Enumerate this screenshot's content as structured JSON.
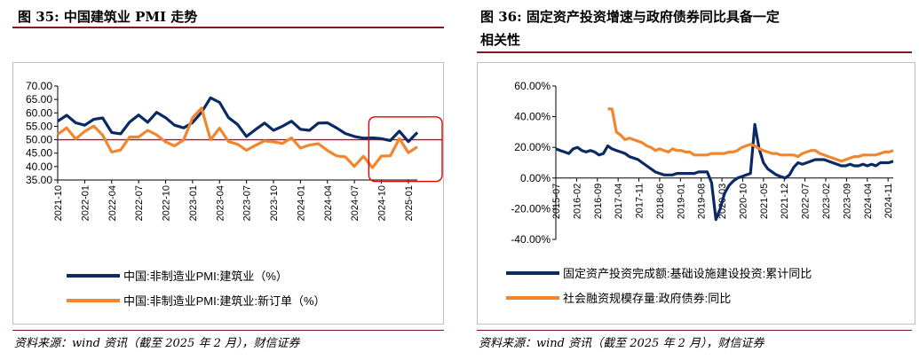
{
  "charts": [
    {
      "title": "图 35: 中国建筑业 PMI 走势",
      "source": "资料来源：wind 资讯（截至 2025 年 2 月），财信证券",
      "chart_data": {
        "type": "line",
        "x": [
          "2021-10",
          "2021-11",
          "2021-12",
          "2022-01",
          "2022-02",
          "2022-03",
          "2022-04",
          "2022-05",
          "2022-06",
          "2022-07",
          "2022-08",
          "2022-09",
          "2022-10",
          "2022-11",
          "2022-12",
          "2023-01",
          "2023-02",
          "2023-03",
          "2023-04",
          "2023-05",
          "2023-06",
          "2023-07",
          "2023-08",
          "2023-09",
          "2023-10",
          "2023-11",
          "2023-12",
          "2024-01",
          "2024-02",
          "2024-03",
          "2024-04",
          "2024-05",
          "2024-06",
          "2024-07",
          "2024-08",
          "2024-09",
          "2024-10",
          "2024-11",
          "2024-12",
          "2025-01",
          "2025-02"
        ],
        "x_tick_labels": [
          "2021-10",
          "2022-01",
          "2022-04",
          "2022-07",
          "2022-10",
          "2023-01",
          "2023-04",
          "2023-07",
          "2023-10",
          "2024-01",
          "2024-04",
          "2024-07",
          "2024-10",
          "2025-01"
        ],
        "ylim": [
          35,
          70
        ],
        "y_ticks": [
          "35.00",
          "40.00",
          "45.00",
          "50.00",
          "55.00",
          "60.00",
          "65.00",
          "70.00"
        ],
        "reference_line": 50,
        "series": [
          {
            "name": "中国:非制造业PMI:建筑业（%）",
            "color": "#0b2a63",
            "values": [
              56.9,
              59.1,
              56.3,
              55.4,
              57.6,
              58.1,
              52.7,
              52.2,
              56.6,
              59.2,
              56.5,
              60.2,
              58.2,
              55.4,
              54.4,
              56.4,
              60.2,
              65.6,
              63.9,
              58.2,
              55.7,
              51.2,
              53.8,
              56.2,
              53.5,
              55.0,
              56.9,
              53.9,
              53.5,
              56.2,
              56.3,
              54.4,
              52.3,
              51.2,
              50.6,
              50.7,
              50.4,
              49.7,
              53.2,
              49.3,
              52.7
            ]
          },
          {
            "name": "中国:非制造业PMI:建筑业:新订单（%）",
            "color": "#f0862e",
            "values": [
              52.0,
              54.4,
              50.3,
              53.1,
              55.1,
              51.7,
              45.4,
              46.2,
              51.0,
              51.0,
              53.5,
              51.8,
              49.2,
              47.7,
              49.9,
              58.2,
              61.8,
              50.0,
              54.3,
              49.3,
              48.3,
              46.1,
              47.9,
              49.6,
              49.2,
              48.6,
              50.7,
              46.9,
              48.0,
              48.5,
              46.0,
              44.0,
              43.6,
              40.1,
              43.8,
              39.6,
              43.9,
              44.0,
              50.4,
              45.2,
              47.3
            ]
          }
        ]
      }
    },
    {
      "title_line1": "图 36: 固定资产投资增速与政府债券同比具备一定",
      "title_line2": "相关性",
      "source": "资料来源：wind 资讯（截至 2025 年 2 月），财信证券",
      "chart_data": {
        "type": "line",
        "x_tick_labels": [
          "2015-07",
          "2016-02",
          "2016-09",
          "2017-04",
          "2017-11",
          "2018-06",
          "2019-01",
          "2019-08",
          "2020-03",
          "2020-10",
          "2021-05",
          "2021-12",
          "2022-07",
          "2023-02",
          "2023-09",
          "2024-04",
          "2024-11"
        ],
        "ylim": [
          -40,
          60
        ],
        "y_ticks": [
          "-40.00%",
          "-20.00%",
          "0.00%",
          "20.00%",
          "40.00%",
          "60.00%"
        ],
        "series": [
          {
            "name": "固定资产投资完成额:基础设施建设投资:累计同比",
            "color": "#0b2a63",
            "points": [
              [
                0,
                19
              ],
              [
                1,
                18
              ],
              [
                2,
                17
              ],
              [
                3,
                16
              ],
              [
                4,
                19
              ],
              [
                5,
                20
              ],
              [
                6,
                18
              ],
              [
                7,
                17
              ],
              [
                8,
                18
              ],
              [
                9,
                17
              ],
              [
                10,
                15
              ],
              [
                11,
                16
              ],
              [
                12,
                21
              ],
              [
                13,
                19
              ],
              [
                14,
                18
              ],
              [
                15,
                17
              ],
              [
                16,
                16
              ],
              [
                17,
                14
              ],
              [
                18,
                13
              ],
              [
                19,
                12
              ],
              [
                20,
                10
              ],
              [
                21,
                8
              ],
              [
                22,
                6
              ],
              [
                23,
                4
              ],
              [
                24,
                3
              ],
              [
                25,
                2
              ],
              [
                26,
                2
              ],
              [
                27,
                2
              ],
              [
                28,
                3
              ],
              [
                29,
                3
              ],
              [
                30,
                3
              ],
              [
                31,
                3
              ],
              [
                32,
                3
              ],
              [
                33,
                4
              ],
              [
                34,
                4
              ],
              [
                35,
                4
              ],
              [
                36,
                -3
              ],
              [
                37,
                -27
              ],
              [
                38,
                -20
              ],
              [
                39,
                -10
              ],
              [
                40,
                -5
              ],
              [
                41,
                -2
              ],
              [
                42,
                0
              ],
              [
                43,
                1
              ],
              [
                44,
                2
              ],
              [
                45,
                3
              ],
              [
                46,
                35
              ],
              [
                47,
                19
              ],
              [
                48,
                10
              ],
              [
                49,
                6
              ],
              [
                50,
                4
              ],
              [
                51,
                2
              ],
              [
                52,
                1
              ],
              [
                53,
                0
              ],
              [
                54,
                2
              ],
              [
                55,
                7
              ],
              [
                56,
                10
              ],
              [
                57,
                9
              ],
              [
                58,
                10
              ],
              [
                59,
                11
              ],
              [
                60,
                12
              ],
              [
                61,
                12
              ],
              [
                62,
                12
              ],
              [
                63,
                11
              ],
              [
                64,
                10
              ],
              [
                65,
                9
              ],
              [
                66,
                8
              ],
              [
                67,
                8
              ],
              [
                68,
                9
              ],
              [
                69,
                8
              ],
              [
                70,
                8
              ],
              [
                71,
                9
              ],
              [
                72,
                8
              ],
              [
                73,
                9
              ],
              [
                74,
                8
              ],
              [
                75,
                10
              ],
              [
                76,
                10
              ],
              [
                77,
                10
              ],
              [
                78,
                11
              ]
            ]
          },
          {
            "name": "社会融资规模存量:政府债券:同比",
            "color": "#f0862e",
            "points": [
              [
                12,
                45
              ],
              [
                13,
                45
              ],
              [
                14,
                30
              ],
              [
                15,
                28
              ],
              [
                16,
                25
              ],
              [
                17,
                26
              ],
              [
                18,
                25
              ],
              [
                19,
                24
              ],
              [
                20,
                23
              ],
              [
                21,
                21
              ],
              [
                22,
                20
              ],
              [
                23,
                18
              ],
              [
                24,
                19
              ],
              [
                25,
                18
              ],
              [
                26,
                17
              ],
              [
                27,
                19
              ],
              [
                28,
                18
              ],
              [
                29,
                18
              ],
              [
                30,
                17
              ],
              [
                31,
                17
              ],
              [
                32,
                15
              ],
              [
                33,
                15
              ],
              [
                34,
                15
              ],
              [
                35,
                15
              ],
              [
                36,
                16
              ],
              [
                37,
                16
              ],
              [
                38,
                16
              ],
              [
                39,
                16
              ],
              [
                40,
                17
              ],
              [
                41,
                17
              ],
              [
                42,
                18
              ],
              [
                43,
                20
              ],
              [
                44,
                21
              ],
              [
                45,
                22
              ],
              [
                46,
                21
              ],
              [
                47,
                19
              ],
              [
                48,
                18
              ],
              [
                49,
                17
              ],
              [
                50,
                16
              ],
              [
                51,
                16
              ],
              [
                52,
                15
              ],
              [
                53,
                15
              ],
              [
                54,
                15
              ],
              [
                55,
                15
              ],
              [
                56,
                14
              ],
              [
                57,
                16
              ],
              [
                58,
                17
              ],
              [
                59,
                18
              ],
              [
                60,
                18
              ],
              [
                61,
                16
              ],
              [
                62,
                15
              ],
              [
                63,
                14
              ],
              [
                64,
                13
              ],
              [
                65,
                12
              ],
              [
                66,
                11
              ],
              [
                67,
                12
              ],
              [
                68,
                13
              ],
              [
                69,
                14
              ],
              [
                70,
                14
              ],
              [
                71,
                15
              ],
              [
                72,
                15
              ],
              [
                73,
                15
              ],
              [
                74,
                15
              ],
              [
                75,
                16
              ],
              [
                76,
                17
              ],
              [
                77,
                17
              ],
              [
                78,
                18
              ]
            ]
          }
        ]
      }
    }
  ]
}
